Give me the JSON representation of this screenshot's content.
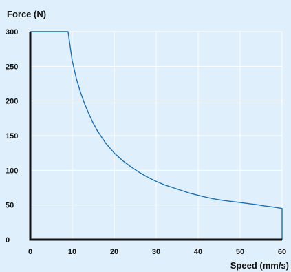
{
  "colors": {
    "background": "#dfeffb",
    "grid": "#ffffff",
    "axis": "#111111",
    "line": "#1a6fb8"
  },
  "chart_data": {
    "type": "line",
    "ylabel": "Force (N)",
    "xlabel": "Speed (mm/s)",
    "xlim": [
      0,
      60
    ],
    "ylim": [
      0,
      300
    ],
    "x_ticks": [
      0,
      10,
      20,
      30,
      40,
      50,
      60
    ],
    "y_ticks": [
      0,
      50,
      100,
      150,
      200,
      250,
      300
    ],
    "grid": true,
    "series": [
      {
        "x": [
          0,
          9,
          10,
          11,
          12,
          13,
          14,
          15,
          16,
          18,
          20,
          22,
          24,
          26,
          28,
          30,
          32,
          34,
          36,
          38,
          40,
          42,
          44,
          46,
          48,
          50,
          52,
          54,
          56,
          58,
          60,
          60
        ],
        "y": [
          300,
          300,
          258,
          232,
          212,
          195,
          181,
          168,
          157,
          139,
          125,
          114,
          105,
          97,
          90,
          84,
          79,
          75,
          71,
          67,
          64,
          61,
          58.5,
          56.5,
          55,
          53.5,
          52,
          50.5,
          48.5,
          47,
          45,
          0
        ]
      }
    ]
  }
}
